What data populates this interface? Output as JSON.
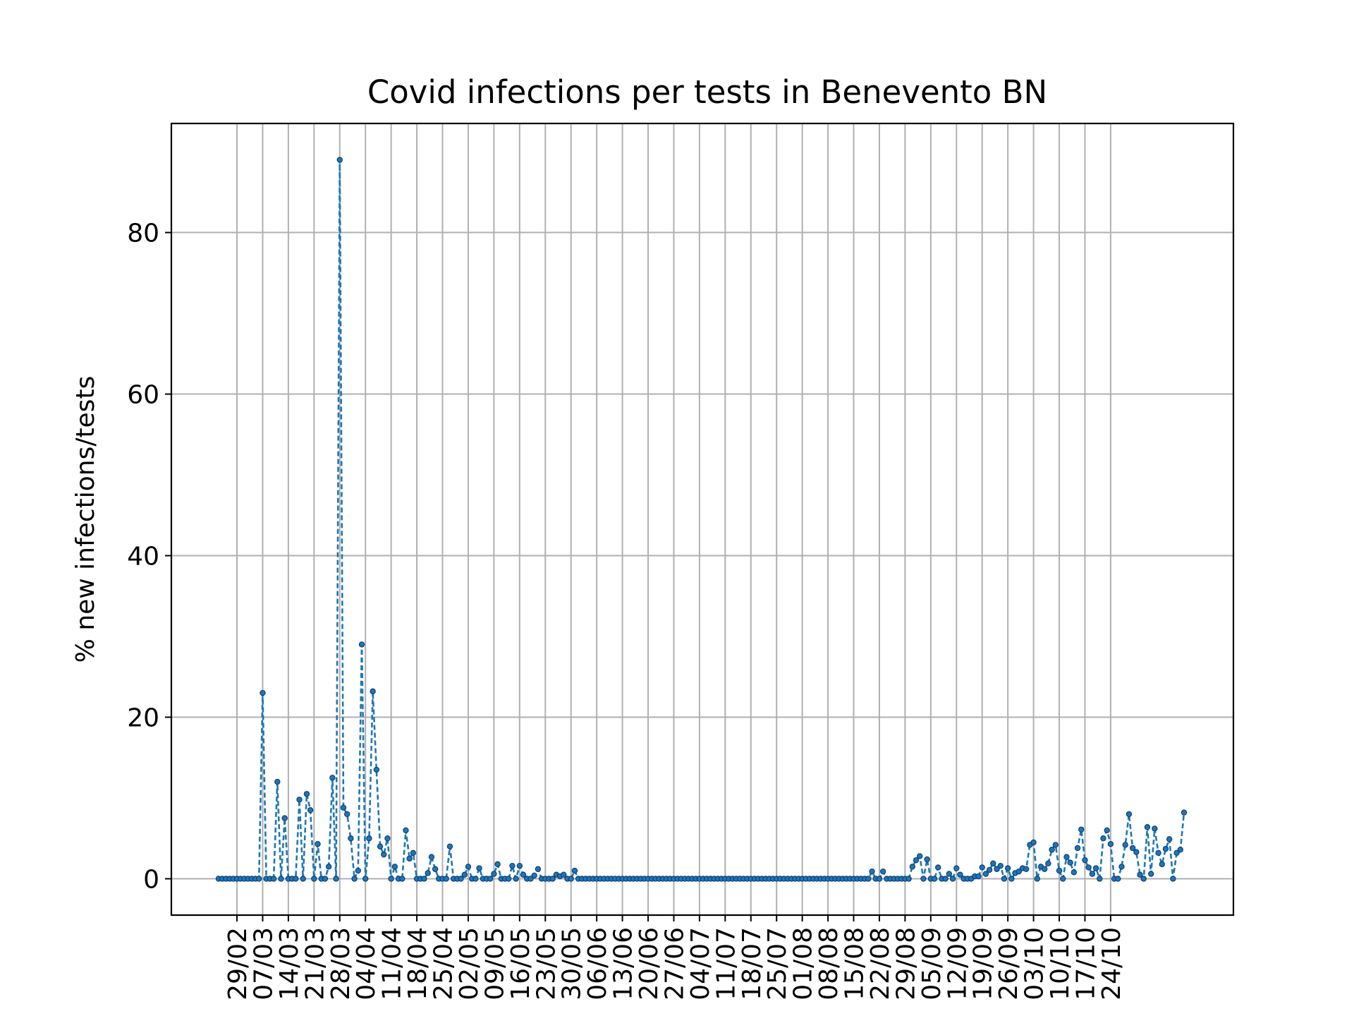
{
  "chart_data": {
    "type": "line",
    "title": "Covid infections per tests in Benevento BN",
    "xlabel": "",
    "ylabel": "% new infections/tests",
    "ylim": [
      -4.5,
      93.5
    ],
    "yticks": [
      0,
      20,
      40,
      60,
      80
    ],
    "grid": true,
    "legend": "none",
    "line_style": "dashed",
    "marker": "dot",
    "colors": {
      "line": "#1f77b4",
      "marker": "#1f77b4",
      "marker_edge": "#0d3f7a",
      "grid": "#b0b0b0"
    },
    "x_start_date": "2020-02-24",
    "x_tick_labels": [
      "29/02",
      "07/03",
      "14/03",
      "21/03",
      "28/03",
      "04/04",
      "11/04",
      "18/04",
      "25/04",
      "02/05",
      "09/05",
      "16/05",
      "23/05",
      "30/05",
      "06/06",
      "13/06",
      "20/06",
      "27/06",
      "04/07",
      "11/07",
      "18/07",
      "25/07",
      "01/08",
      "08/08",
      "15/08",
      "22/08",
      "29/08",
      "05/09",
      "12/09",
      "19/09",
      "26/09",
      "03/10",
      "10/10",
      "17/10",
      "24/10"
    ],
    "series": [
      {
        "name": "",
        "values": [
          0,
          0,
          0,
          0,
          0,
          0,
          0,
          0,
          0,
          0,
          0,
          0,
          23.0,
          0,
          0,
          0,
          12.0,
          0,
          7.5,
          0,
          0,
          0,
          9.8,
          0,
          10.5,
          8.5,
          0,
          4.3,
          0,
          0,
          1.5,
          12.5,
          0,
          89.0,
          8.8,
          8.0,
          5.0,
          0,
          1.0,
          29.0,
          0,
          5.0,
          23.2,
          13.5,
          4.0,
          3.0,
          5.0,
          0,
          1.5,
          0,
          0,
          6.0,
          2.5,
          3.2,
          0,
          0,
          0,
          0.7,
          2.7,
          1.2,
          0,
          0,
          0,
          4.0,
          0,
          0,
          0,
          0.5,
          1.5,
          0,
          0,
          1.3,
          0,
          0,
          0,
          0.6,
          1.8,
          0,
          0,
          0,
          1.6,
          0,
          1.6,
          0.5,
          0,
          0,
          0.4,
          1.2,
          0,
          0,
          0,
          0,
          0.5,
          0.3,
          0.5,
          0,
          0,
          1.0,
          0,
          0,
          0,
          0,
          0,
          0,
          0,
          0,
          0,
          0,
          0,
          0,
          0,
          0,
          0,
          0,
          0,
          0,
          0,
          0,
          0,
          0,
          0,
          0,
          0,
          0,
          0,
          0,
          0,
          0,
          0,
          0,
          0,
          0,
          0,
          0,
          0,
          0,
          0,
          0,
          0,
          0,
          0,
          0,
          0,
          0,
          0,
          0,
          0,
          0,
          0,
          0,
          0,
          0,
          0,
          0,
          0,
          0,
          0,
          0,
          0,
          0,
          0,
          0,
          0,
          0,
          0,
          0,
          0,
          0,
          0,
          0,
          0,
          0,
          0,
          0,
          0,
          0,
          0,
          0,
          0.9,
          0,
          0,
          0.9,
          0,
          0,
          0,
          0,
          0,
          0,
          0,
          1.5,
          2.3,
          2.8,
          0,
          2.4,
          0,
          0,
          1.4,
          0,
          0,
          0.6,
          0,
          1.3,
          0.5,
          0,
          0,
          0,
          0.3,
          0.3,
          1.4,
          0.6,
          1.1,
          1.9,
          1.2,
          1.6,
          0,
          1.3,
          0,
          0.7,
          0.9,
          1.3,
          1.2,
          4.2,
          4.5,
          0,
          1.5,
          1.2,
          1.9,
          3.6,
          4.2,
          1.0,
          0,
          2.7,
          2.0,
          0.8,
          3.8,
          6.1,
          2.3,
          1.4,
          0.6,
          1.3,
          0,
          5.0,
          6.0,
          4.3,
          0,
          0,
          1.5,
          4.2,
          8.0,
          3.8,
          3.3,
          0.5,
          0,
          6.4,
          0.6,
          6.2,
          3.2,
          1.8,
          3.7,
          4.9,
          0,
          3.2,
          3.6,
          8.2
        ]
      }
    ]
  }
}
